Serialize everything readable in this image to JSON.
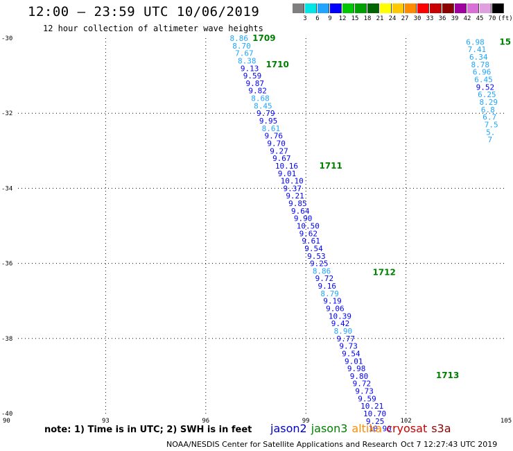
{
  "header": {
    "title": "12:00 – 23:59 UTC 10/06/2019",
    "subtitle": "12 hour collection of altimeter wave heights"
  },
  "colorbar": {
    "labels": [
      "3",
      "6",
      "9",
      "12",
      "15",
      "18",
      "21",
      "24",
      "27",
      "30",
      "33",
      "36",
      "39",
      "42",
      "45",
      "70",
      "(ft)"
    ],
    "colors": [
      "#7f7f7f",
      "#00e5e5",
      "#1fa5ff",
      "#0000ff",
      "#00c800",
      "#00a000",
      "#006400",
      "#ffff00",
      "#ffc800",
      "#ff8c00",
      "#ff0000",
      "#c80000",
      "#8b0000",
      "#a000a0",
      "#d870d8",
      "#e0a0e0",
      "#000000"
    ]
  },
  "axes": {
    "x_ticks": [
      "90",
      "93",
      "96",
      "99",
      "102",
      "105"
    ],
    "y_ticks": [
      "-30",
      "-32",
      "-34",
      "-36",
      "-38",
      "-40"
    ]
  },
  "chart_data": {
    "type": "scatter",
    "xlim": [
      90,
      105
    ],
    "ylim": [
      -40,
      -30
    ],
    "grid": true,
    "pass_labels": [
      {
        "text": "1709",
        "x": 97.4,
        "y": -30.0
      },
      {
        "text": "1710",
        "x": 97.8,
        "y": -30.7
      },
      {
        "text": "1711",
        "x": 99.4,
        "y": -33.4
      },
      {
        "text": "1712",
        "x": 101.0,
        "y": -36.24
      },
      {
        "text": "1713",
        "x": 102.9,
        "y": -38.98
      },
      {
        "text": "15",
        "x": 104.8,
        "y": -30.1
      }
    ],
    "points": [
      {
        "v": "8.86",
        "x": 96.72,
        "y": -30.0,
        "c": "#1fa5ff"
      },
      {
        "v": "8.70",
        "x": 96.8,
        "y": -30.2,
        "c": "#1fa5ff"
      },
      {
        "v": "7.67",
        "x": 96.88,
        "y": -30.4,
        "c": "#1fa5ff"
      },
      {
        "v": "8.38",
        "x": 96.96,
        "y": -30.6,
        "c": "#1fa5ff"
      },
      {
        "v": "9.13",
        "x": 97.04,
        "y": -30.8,
        "c": "#0000ff"
      },
      {
        "v": "9.59",
        "x": 97.12,
        "y": -31.0,
        "c": "#0000ff"
      },
      {
        "v": "9.87",
        "x": 97.2,
        "y": -31.2,
        "c": "#0000ff"
      },
      {
        "v": "9.82",
        "x": 97.28,
        "y": -31.4,
        "c": "#0000ff"
      },
      {
        "v": "8.68",
        "x": 97.36,
        "y": -31.6,
        "c": "#1fa5ff"
      },
      {
        "v": "8.45",
        "x": 97.44,
        "y": -31.8,
        "c": "#1fa5ff"
      },
      {
        "v": "9.79",
        "x": 97.52,
        "y": -32.0,
        "c": "#0000ff"
      },
      {
        "v": "9.95",
        "x": 97.6,
        "y": -32.2,
        "c": "#0000ff"
      },
      {
        "v": "8.61",
        "x": 97.68,
        "y": -32.4,
        "c": "#1fa5ff"
      },
      {
        "v": "9.76",
        "x": 97.76,
        "y": -32.6,
        "c": "#0000ff"
      },
      {
        "v": "9.70",
        "x": 97.84,
        "y": -32.8,
        "c": "#0000ff"
      },
      {
        "v": "9.27",
        "x": 97.92,
        "y": -33.0,
        "c": "#0000ff"
      },
      {
        "v": "9.67",
        "x": 98.0,
        "y": -33.2,
        "c": "#0000ff"
      },
      {
        "v": "10.16",
        "x": 98.08,
        "y": -33.4,
        "c": "#0000ff"
      },
      {
        "v": "9.01",
        "x": 98.16,
        "y": -33.6,
        "c": "#0000ff"
      },
      {
        "v": "10.10",
        "x": 98.24,
        "y": -33.8,
        "c": "#0000ff"
      },
      {
        "v": "9.37",
        "x": 98.32,
        "y": -34.0,
        "c": "#0000ff"
      },
      {
        "v": "9.21",
        "x": 98.4,
        "y": -34.2,
        "c": "#0000ff"
      },
      {
        "v": "9.85",
        "x": 98.48,
        "y": -34.4,
        "c": "#0000ff"
      },
      {
        "v": "9.64",
        "x": 98.56,
        "y": -34.6,
        "c": "#0000ff"
      },
      {
        "v": "9.90",
        "x": 98.64,
        "y": -34.8,
        "c": "#0000ff"
      },
      {
        "v": "10.50",
        "x": 98.72,
        "y": -35.0,
        "c": "#0000ff"
      },
      {
        "v": "9.62",
        "x": 98.8,
        "y": -35.2,
        "c": "#0000ff"
      },
      {
        "v": "9.61",
        "x": 98.88,
        "y": -35.4,
        "c": "#0000ff"
      },
      {
        "v": "9.54",
        "x": 98.96,
        "y": -35.6,
        "c": "#0000ff"
      },
      {
        "v": "9.53",
        "x": 99.04,
        "y": -35.8,
        "c": "#0000ff"
      },
      {
        "v": "9.25",
        "x": 99.12,
        "y": -36.0,
        "c": "#0000ff"
      },
      {
        "v": "8.86",
        "x": 99.2,
        "y": -36.2,
        "c": "#1fa5ff"
      },
      {
        "v": "9.72",
        "x": 99.28,
        "y": -36.4,
        "c": "#0000ff"
      },
      {
        "v": "9.16",
        "x": 99.36,
        "y": -36.6,
        "c": "#0000ff"
      },
      {
        "v": "8.79",
        "x": 99.44,
        "y": -36.8,
        "c": "#1fa5ff"
      },
      {
        "v": "9.19",
        "x": 99.52,
        "y": -37.0,
        "c": "#0000ff"
      },
      {
        "v": "9.06",
        "x": 99.6,
        "y": -37.2,
        "c": "#0000ff"
      },
      {
        "v": "10.39",
        "x": 99.68,
        "y": -37.4,
        "c": "#0000ff"
      },
      {
        "v": "9.42",
        "x": 99.76,
        "y": -37.6,
        "c": "#0000ff"
      },
      {
        "v": "8.90",
        "x": 99.84,
        "y": -37.8,
        "c": "#1fa5ff"
      },
      {
        "v": "9.77",
        "x": 99.92,
        "y": -38.0,
        "c": "#0000ff"
      },
      {
        "v": "9.73",
        "x": 100.0,
        "y": -38.2,
        "c": "#0000ff"
      },
      {
        "v": "9.54",
        "x": 100.08,
        "y": -38.4,
        "c": "#0000ff"
      },
      {
        "v": "9.01",
        "x": 100.16,
        "y": -38.6,
        "c": "#0000ff"
      },
      {
        "v": "9.98",
        "x": 100.24,
        "y": -38.8,
        "c": "#0000ff"
      },
      {
        "v": "9.80",
        "x": 100.32,
        "y": -39.0,
        "c": "#0000ff"
      },
      {
        "v": "9.72",
        "x": 100.4,
        "y": -39.2,
        "c": "#0000ff"
      },
      {
        "v": "9.73",
        "x": 100.48,
        "y": -39.4,
        "c": "#0000ff"
      },
      {
        "v": "9.59",
        "x": 100.56,
        "y": -39.6,
        "c": "#0000ff"
      },
      {
        "v": "10.21",
        "x": 100.64,
        "y": -39.8,
        "c": "#0000ff"
      },
      {
        "v": "10.70",
        "x": 100.72,
        "y": -40.0,
        "c": "#0000ff"
      },
      {
        "v": "9.25",
        "x": 100.8,
        "y": -40.2,
        "c": "#0000ff"
      },
      {
        "v": "10.90",
        "x": 100.88,
        "y": -40.4,
        "c": "#0000ff"
      },
      {
        "v": "6.98",
        "x": 103.8,
        "y": -30.1,
        "c": "#1fa5ff"
      },
      {
        "v": "7.41",
        "x": 103.85,
        "y": -30.3,
        "c": "#1fa5ff"
      },
      {
        "v": "6.34",
        "x": 103.9,
        "y": -30.5,
        "c": "#1fa5ff"
      },
      {
        "v": "8.78",
        "x": 103.95,
        "y": -30.7,
        "c": "#1fa5ff"
      },
      {
        "v": "6.96",
        "x": 104.0,
        "y": -30.9,
        "c": "#1fa5ff"
      },
      {
        "v": "6.45",
        "x": 104.05,
        "y": -31.1,
        "c": "#1fa5ff"
      },
      {
        "v": "9.52",
        "x": 104.1,
        "y": -31.3,
        "c": "#0000ff"
      },
      {
        "v": "6.25",
        "x": 104.15,
        "y": -31.5,
        "c": "#1fa5ff"
      },
      {
        "v": "8.29",
        "x": 104.2,
        "y": -31.7,
        "c": "#1fa5ff"
      },
      {
        "v": "6.8",
        "x": 104.25,
        "y": -31.9,
        "c": "#1fa5ff"
      },
      {
        "v": "6.7",
        "x": 104.3,
        "y": -32.1,
        "c": "#1fa5ff"
      },
      {
        "v": "7.5",
        "x": 104.35,
        "y": -32.3,
        "c": "#1fa5ff"
      },
      {
        "v": "5.",
        "x": 104.4,
        "y": -32.5,
        "c": "#1fa5ff"
      },
      {
        "v": "7",
        "x": 104.45,
        "y": -32.7,
        "c": "#1fa5ff"
      }
    ]
  },
  "footer": {
    "note": "note:  1) Time is in UTC; 2) SWH is in feet",
    "satellites": [
      {
        "name": "jason2",
        "color": "#0000cc"
      },
      {
        "name": "jason3",
        "color": "#008000"
      },
      {
        "name": "altika",
        "color": "#ff8c00"
      },
      {
        "name": "cryosat",
        "color": "#cc0000"
      },
      {
        "name": "s3a",
        "color": "#8b0000"
      }
    ],
    "credit": "NOAA/NESDIS Center for Satellite Applications and Research",
    "timestamp": "Oct  7 12:27:43 UTC 2019"
  }
}
